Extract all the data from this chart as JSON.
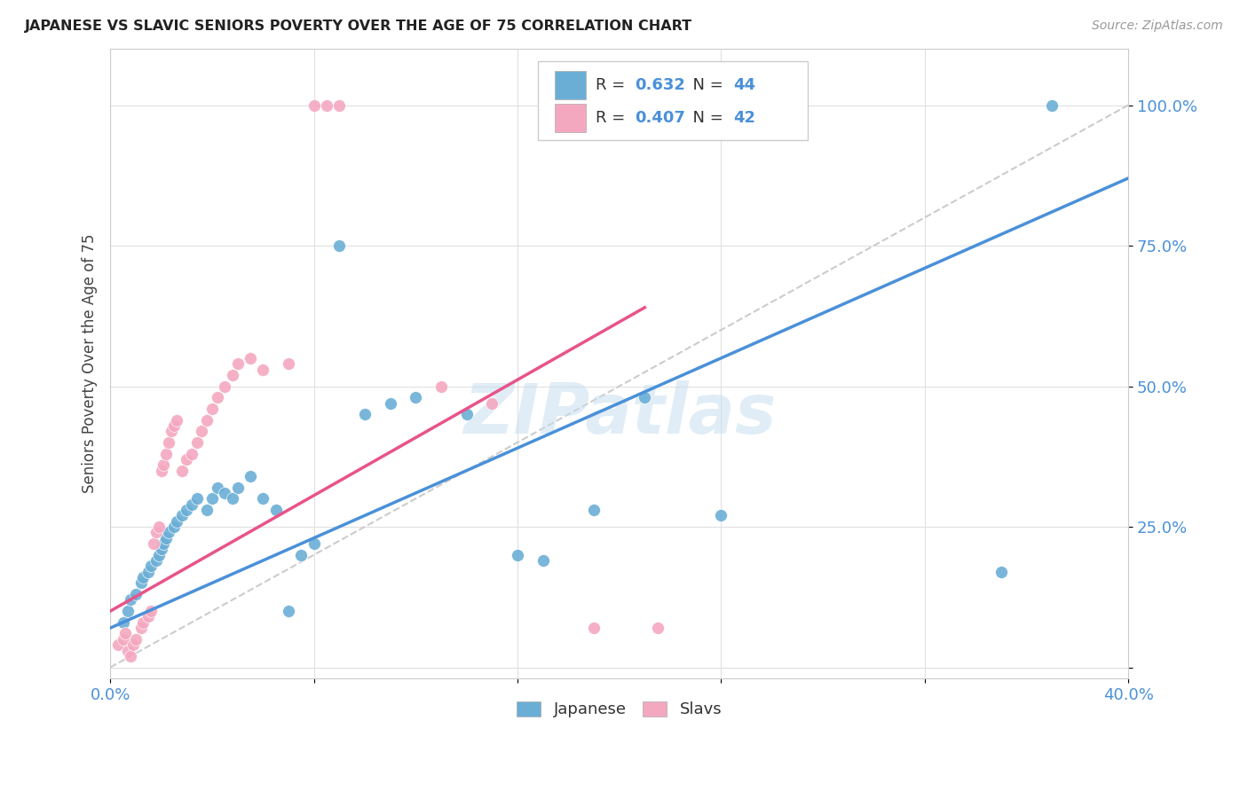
{
  "title": "JAPANESE VS SLAVIC SENIORS POVERTY OVER THE AGE OF 75 CORRELATION CHART",
  "source": "Source: ZipAtlas.com",
  "ylabel": "Seniors Poverty Over the Age of 75",
  "xlim": [
    0.0,
    0.4
  ],
  "ylim": [
    -0.02,
    1.1
  ],
  "yticks": [
    0.0,
    0.25,
    0.5,
    0.75,
    1.0
  ],
  "ytick_labels": [
    "",
    "25.0%",
    "50.0%",
    "75.0%",
    "100.0%"
  ],
  "xticks": [
    0.0,
    0.08,
    0.16,
    0.24,
    0.32,
    0.4
  ],
  "xtick_labels": [
    "0.0%",
    "",
    "",
    "",
    "",
    "40.0%"
  ],
  "japanese_color": "#6aaed6",
  "slavic_color": "#f4a8c0",
  "japanese_R": 0.632,
  "japanese_N": 44,
  "slavic_R": 0.407,
  "slavic_N": 42,
  "watermark": "ZIPatlas",
  "japanese_scatter": [
    [
      0.005,
      0.08
    ],
    [
      0.007,
      0.1
    ],
    [
      0.008,
      0.12
    ],
    [
      0.01,
      0.13
    ],
    [
      0.012,
      0.15
    ],
    [
      0.013,
      0.16
    ],
    [
      0.015,
      0.17
    ],
    [
      0.016,
      0.18
    ],
    [
      0.018,
      0.19
    ],
    [
      0.019,
      0.2
    ],
    [
      0.02,
      0.21
    ],
    [
      0.021,
      0.22
    ],
    [
      0.022,
      0.23
    ],
    [
      0.023,
      0.24
    ],
    [
      0.025,
      0.25
    ],
    [
      0.026,
      0.26
    ],
    [
      0.028,
      0.27
    ],
    [
      0.03,
      0.28
    ],
    [
      0.032,
      0.29
    ],
    [
      0.034,
      0.3
    ],
    [
      0.038,
      0.28
    ],
    [
      0.04,
      0.3
    ],
    [
      0.042,
      0.32
    ],
    [
      0.045,
      0.31
    ],
    [
      0.048,
      0.3
    ],
    [
      0.05,
      0.32
    ],
    [
      0.055,
      0.34
    ],
    [
      0.06,
      0.3
    ],
    [
      0.065,
      0.28
    ],
    [
      0.07,
      0.1
    ],
    [
      0.075,
      0.2
    ],
    [
      0.08,
      0.22
    ],
    [
      0.09,
      0.75
    ],
    [
      0.1,
      0.45
    ],
    [
      0.11,
      0.47
    ],
    [
      0.12,
      0.48
    ],
    [
      0.14,
      0.45
    ],
    [
      0.16,
      0.2
    ],
    [
      0.17,
      0.19
    ],
    [
      0.19,
      0.28
    ],
    [
      0.21,
      0.48
    ],
    [
      0.24,
      0.27
    ],
    [
      0.35,
      0.17
    ],
    [
      0.37,
      1.0
    ]
  ],
  "slavic_scatter": [
    [
      0.003,
      0.04
    ],
    [
      0.005,
      0.05
    ],
    [
      0.006,
      0.06
    ],
    [
      0.007,
      0.03
    ],
    [
      0.008,
      0.02
    ],
    [
      0.009,
      0.04
    ],
    [
      0.01,
      0.05
    ],
    [
      0.012,
      0.07
    ],
    [
      0.013,
      0.08
    ],
    [
      0.015,
      0.09
    ],
    [
      0.016,
      0.1
    ],
    [
      0.017,
      0.22
    ],
    [
      0.018,
      0.24
    ],
    [
      0.019,
      0.25
    ],
    [
      0.02,
      0.35
    ],
    [
      0.021,
      0.36
    ],
    [
      0.022,
      0.38
    ],
    [
      0.023,
      0.4
    ],
    [
      0.024,
      0.42
    ],
    [
      0.025,
      0.43
    ],
    [
      0.026,
      0.44
    ],
    [
      0.028,
      0.35
    ],
    [
      0.03,
      0.37
    ],
    [
      0.032,
      0.38
    ],
    [
      0.034,
      0.4
    ],
    [
      0.036,
      0.42
    ],
    [
      0.038,
      0.44
    ],
    [
      0.04,
      0.46
    ],
    [
      0.042,
      0.48
    ],
    [
      0.045,
      0.5
    ],
    [
      0.048,
      0.52
    ],
    [
      0.05,
      0.54
    ],
    [
      0.055,
      0.55
    ],
    [
      0.06,
      0.53
    ],
    [
      0.07,
      0.54
    ],
    [
      0.08,
      1.0
    ],
    [
      0.085,
      1.0
    ],
    [
      0.09,
      1.0
    ],
    [
      0.13,
      0.5
    ],
    [
      0.15,
      0.47
    ],
    [
      0.19,
      0.07
    ],
    [
      0.215,
      0.07
    ]
  ],
  "diagonal_line_x": [
    0.0,
    0.4
  ],
  "diagonal_line_y": [
    0.0,
    1.0
  ],
  "japanese_trend_x": [
    0.0,
    0.4
  ],
  "japanese_trend_y": [
    0.07,
    0.87
  ],
  "slavic_trend_x": [
    0.0,
    0.21
  ],
  "slavic_trend_y": [
    0.1,
    0.64
  ]
}
